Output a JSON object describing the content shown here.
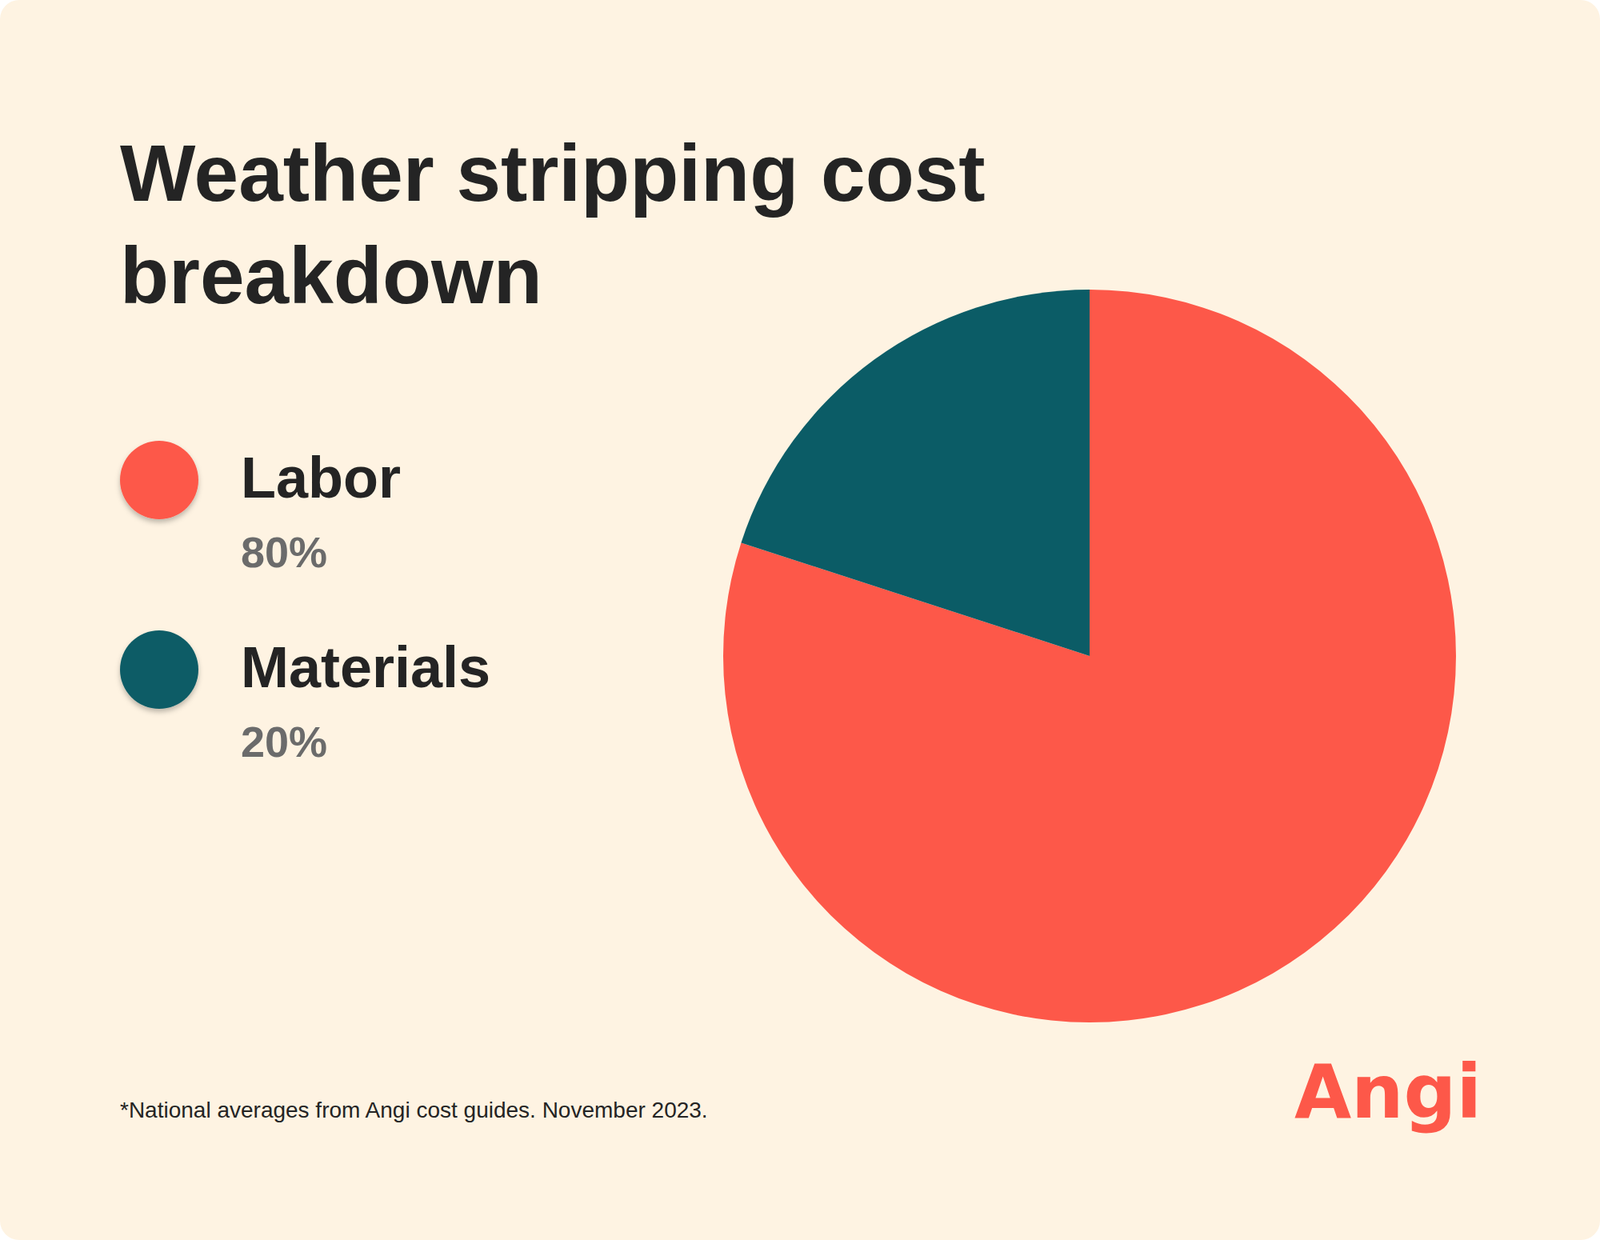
{
  "chart_data": {
    "type": "pie",
    "title": "Weather stripping cost breakdown",
    "categories": [
      "Labor",
      "Materials"
    ],
    "values": [
      80,
      20
    ],
    "value_labels": [
      "80%",
      "20%"
    ],
    "colors": [
      "#fd5849",
      "#0b5c66"
    ],
    "footnote": "*National averages from Angi cost guides. November 2023.",
    "logo": "Angi"
  }
}
